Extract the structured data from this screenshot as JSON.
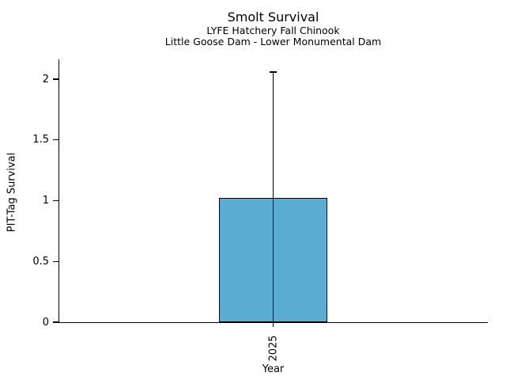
{
  "header": {
    "title": "Smolt Survival",
    "subtitle1": "LYFE Hatchery Fall Chinook",
    "subtitle2": "Little Goose Dam - Lower Monumental Dam"
  },
  "axes": {
    "y_label": "PIT-Tag Survival",
    "x_label": "Year",
    "y_ticks": [
      "0",
      "0.5",
      "1",
      "1.5",
      "2"
    ],
    "x_ticks": [
      "2025"
    ]
  },
  "chart_data": {
    "type": "bar",
    "title": "Smolt Survival",
    "subtitle": [
      "LYFE Hatchery Fall Chinook",
      "Little Goose Dam - Lower Monumental Dam"
    ],
    "xlabel": "Year",
    "ylabel": "PIT-Tag Survival",
    "categories": [
      "2025"
    ],
    "values": [
      1.02
    ],
    "error_lower": [
      0
    ],
    "error_upper": [
      2.06
    ],
    "ylim": [
      0,
      2.16
    ],
    "grid": false,
    "legend_position": "none",
    "bar_color": "#5AACD3",
    "bar_edge_color": "#000000",
    "error_bar_color": "#000000"
  }
}
